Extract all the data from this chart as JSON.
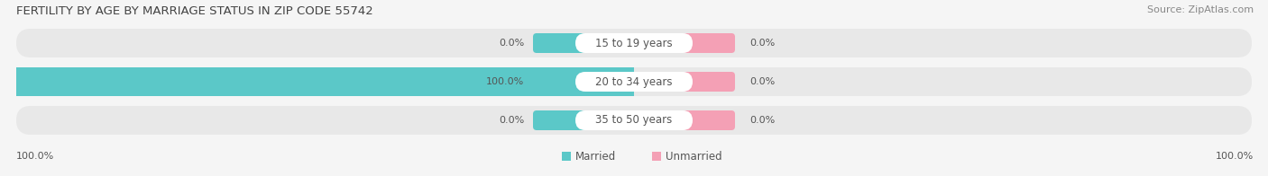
{
  "title": "FERTILITY BY AGE BY MARRIAGE STATUS IN ZIP CODE 55742",
  "source": "Source: ZipAtlas.com",
  "age_groups": [
    "15 to 19 years",
    "20 to 34 years",
    "35 to 50 years"
  ],
  "married_values": [
    0.0,
    100.0,
    0.0
  ],
  "unmarried_values": [
    0.0,
    0.0,
    0.0
  ],
  "married_color": "#5bc8c8",
  "unmarried_color": "#f4a0b5",
  "bar_bg_color": "#e8e8e8",
  "bar_bg_color_row2": "#4ab8b8",
  "white_label_color": "#ffffff",
  "legend_married": "Married",
  "legend_unmarried": "Unmarried",
  "title_fontsize": 9.5,
  "source_fontsize": 8,
  "label_fontsize": 8.5,
  "value_fontsize": 8,
  "tick_fontsize": 8,
  "bg_color": "#f5f5f5",
  "bottom_left_text": "100.0%",
  "bottom_right_text": "100.0%",
  "center_label_bg": "#ffffff",
  "row_bg_colors": [
    "#ebebeb",
    "#d8f0f0",
    "#ebebeb"
  ]
}
